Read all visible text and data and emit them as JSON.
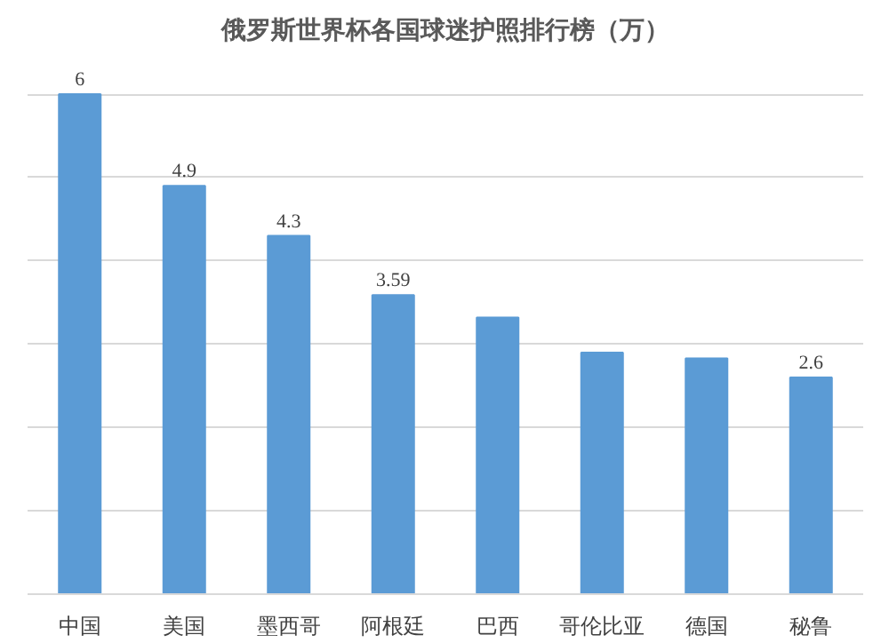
{
  "chart_data": {
    "type": "bar",
    "title": "俄罗斯世界杯各国球迷护照排行榜（万）",
    "categories": [
      "中国",
      "美国",
      "墨西哥",
      "阿根廷",
      "巴西",
      "哥伦比亚",
      "德国",
      "秘鲁"
    ],
    "values": [
      6,
      4.9,
      4.3,
      3.59,
      3.32,
      2.9,
      2.83,
      2.6
    ],
    "value_labels": [
      "6",
      "4.9",
      "4.3",
      "3.59",
      null,
      null,
      null,
      "2.6"
    ],
    "color": "#5b9bd5",
    "grid": "y",
    "tick_labels": "x"
  }
}
